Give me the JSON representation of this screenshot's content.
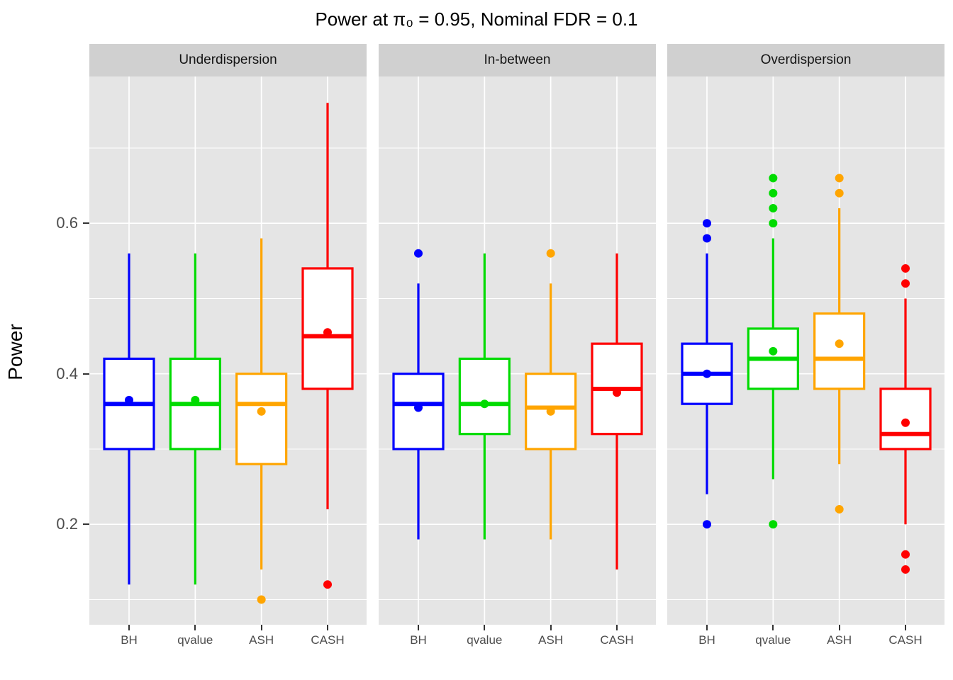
{
  "title": "Power at π₀ = 0.95, Nominal FDR = 0.1",
  "y_axis": {
    "label": "Power",
    "ticks": [
      {
        "label": "0.2",
        "value": 0.2
      },
      {
        "label": "0.4",
        "value": 0.4
      },
      {
        "label": "0.6",
        "value": 0.6
      }
    ]
  },
  "x_axis": {
    "categories": [
      "BH",
      "qvalue",
      "ASH",
      "CASH"
    ]
  },
  "colors": {
    "BH": "#0000ff",
    "qvalue": "#00db00",
    "ASH": "#ffa500",
    "CASH": "#ff0000",
    "panel_bg": "#e5e5e5",
    "strip_bg": "#d0d0d0",
    "grid": "#ffffff",
    "tick_text": "#4d4d4d",
    "axis_tick": "#333333"
  },
  "chart_data": {
    "type": "boxplot",
    "title": "Power at π₀ = 0.95, Nominal FDR = 0.1",
    "ylabel": "Power",
    "xlabel": "",
    "ylim": [
      0.066,
      0.795
    ],
    "grid_major": [
      0.2,
      0.4,
      0.6
    ],
    "grid_minor": [
      0.1,
      0.3,
      0.5,
      0.7
    ],
    "legend": "none",
    "categories": [
      "BH",
      "qvalue",
      "ASH",
      "CASH"
    ],
    "facets": [
      {
        "label": "Underdispersion",
        "boxes": [
          {
            "method": "BH",
            "color": "#0000ff",
            "whisker_low": 0.12,
            "q1": 0.3,
            "median": 0.36,
            "q3": 0.42,
            "whisker_high": 0.56,
            "mean": 0.365,
            "outliers": []
          },
          {
            "method": "qvalue",
            "color": "#00db00",
            "whisker_low": 0.12,
            "q1": 0.3,
            "median": 0.36,
            "q3": 0.42,
            "whisker_high": 0.56,
            "mean": 0.365,
            "outliers": []
          },
          {
            "method": "ASH",
            "color": "#ffa500",
            "whisker_low": 0.14,
            "q1": 0.28,
            "median": 0.36,
            "q3": 0.4,
            "whisker_high": 0.58,
            "mean": 0.35,
            "outliers": [
              0.1
            ]
          },
          {
            "method": "CASH",
            "color": "#ff0000",
            "whisker_low": 0.22,
            "q1": 0.38,
            "median": 0.45,
            "q3": 0.54,
            "whisker_high": 0.76,
            "mean": 0.455,
            "outliers": [
              0.12
            ]
          }
        ]
      },
      {
        "label": "In-between",
        "boxes": [
          {
            "method": "BH",
            "color": "#0000ff",
            "whisker_low": 0.18,
            "q1": 0.3,
            "median": 0.36,
            "q3": 0.4,
            "whisker_high": 0.52,
            "mean": 0.355,
            "outliers": [
              0.56
            ]
          },
          {
            "method": "qvalue",
            "color": "#00db00",
            "whisker_low": 0.18,
            "q1": 0.32,
            "median": 0.36,
            "q3": 0.42,
            "whisker_high": 0.56,
            "mean": 0.36,
            "outliers": []
          },
          {
            "method": "ASH",
            "color": "#ffa500",
            "whisker_low": 0.18,
            "q1": 0.3,
            "median": 0.355,
            "q3": 0.4,
            "whisker_high": 0.52,
            "mean": 0.35,
            "outliers": [
              0.56
            ]
          },
          {
            "method": "CASH",
            "color": "#ff0000",
            "whisker_low": 0.14,
            "q1": 0.32,
            "median": 0.38,
            "q3": 0.44,
            "whisker_high": 0.56,
            "mean": 0.375,
            "outliers": []
          }
        ]
      },
      {
        "label": "Overdispersion",
        "boxes": [
          {
            "method": "BH",
            "color": "#0000ff",
            "whisker_low": 0.24,
            "q1": 0.36,
            "median": 0.4,
            "q3": 0.44,
            "whisker_high": 0.56,
            "mean": 0.4,
            "outliers": [
              0.6,
              0.58,
              0.2
            ]
          },
          {
            "method": "qvalue",
            "color": "#00db00",
            "whisker_low": 0.26,
            "q1": 0.38,
            "median": 0.42,
            "q3": 0.46,
            "whisker_high": 0.58,
            "mean": 0.43,
            "outliers": [
              0.66,
              0.64,
              0.62,
              0.6,
              0.2
            ]
          },
          {
            "method": "ASH",
            "color": "#ffa500",
            "whisker_low": 0.28,
            "q1": 0.38,
            "median": 0.42,
            "q3": 0.48,
            "whisker_high": 0.62,
            "mean": 0.44,
            "outliers": [
              0.66,
              0.64,
              0.22
            ]
          },
          {
            "method": "CASH",
            "color": "#ff0000",
            "whisker_low": 0.2,
            "q1": 0.3,
            "median": 0.32,
            "q3": 0.38,
            "whisker_high": 0.5,
            "mean": 0.335,
            "outliers": [
              0.54,
              0.52,
              0.16,
              0.14
            ]
          }
        ]
      }
    ]
  }
}
